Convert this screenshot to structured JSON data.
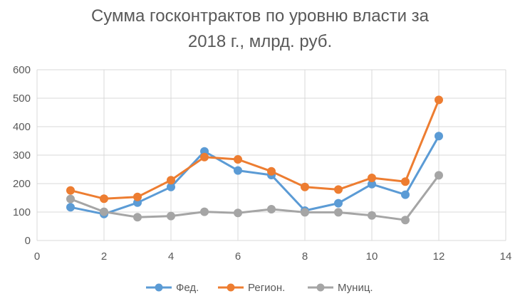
{
  "chart_data": {
    "type": "scatter",
    "title_lines": [
      "Сумма госконтрактов по уровню власти за",
      "2018 г., млрд. руб."
    ],
    "xlabel": "",
    "ylabel": "",
    "xlim": [
      0,
      14
    ],
    "ylim": [
      0,
      600
    ],
    "xticks": [
      0,
      2,
      4,
      6,
      8,
      10,
      12,
      14
    ],
    "yticks": [
      0,
      100,
      200,
      300,
      400,
      500,
      600
    ],
    "grid": true,
    "legend_position": "bottom",
    "x": [
      1,
      2,
      3,
      4,
      5,
      6,
      7,
      8,
      9,
      10,
      11,
      12
    ],
    "series": [
      {
        "name": "Фед.",
        "color": "#5B9BD5",
        "values": [
          117,
          93,
          133,
          188,
          313,
          246,
          230,
          105,
          131,
          198,
          161,
          367
        ]
      },
      {
        "name": "Регион.",
        "color": "#ED7D31",
        "values": [
          176,
          147,
          153,
          212,
          293,
          285,
          243,
          188,
          179,
          220,
          207,
          494
        ]
      },
      {
        "name": "Муниц.",
        "color": "#A5A5A5",
        "values": [
          146,
          101,
          82,
          86,
          101,
          97,
          110,
          99,
          99,
          88,
          72,
          229
        ]
      }
    ]
  }
}
